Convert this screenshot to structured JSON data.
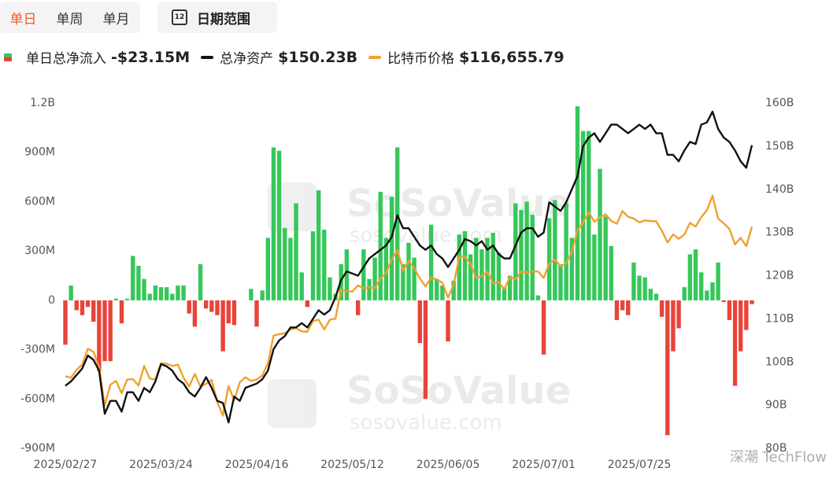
{
  "tabs": [
    "单日",
    "单周",
    "单月"
  ],
  "date_icon": "12",
  "date_button": "日期范围",
  "watermarks": [
    "SoSoValue",
    "sosovalue.com",
    "深潮 TechFlow"
  ],
  "chart_data": {
    "type": "combo",
    "categories": [
      "2025/02/27",
      null,
      null,
      null,
      null,
      null,
      null,
      null,
      null,
      null,
      null,
      null,
      null,
      null,
      null,
      null,
      null,
      "2025/03/24",
      null,
      null,
      null,
      null,
      null,
      null,
      null,
      null,
      null,
      null,
      null,
      null,
      null,
      null,
      null,
      null,
      "2025/04/16",
      null,
      null,
      null,
      null,
      null,
      null,
      null,
      null,
      null,
      null,
      null,
      null,
      null,
      null,
      null,
      null,
      "2025/05/12",
      null,
      null,
      null,
      null,
      null,
      null,
      null,
      null,
      null,
      null,
      null,
      null,
      null,
      null,
      null,
      null,
      "2025/06/05",
      null,
      null,
      null,
      null,
      null,
      null,
      null,
      null,
      null,
      null,
      null,
      null,
      null,
      null,
      null,
      null,
      "2025/07/01",
      null,
      null,
      null,
      null,
      null,
      null,
      null,
      null,
      null,
      null,
      null,
      null,
      null,
      null,
      null,
      null,
      "2025/07/25",
      null,
      null,
      null,
      null,
      null,
      null,
      null,
      null,
      null,
      null,
      null,
      null,
      null,
      null,
      null,
      null,
      null,
      null,
      null,
      null
    ],
    "ylim": [
      -900,
      1200
    ],
    "yticks": [
      {
        "value": -900,
        "label": "-900M"
      },
      {
        "value": -600,
        "label": "-600M"
      },
      {
        "value": -300,
        "label": "-300M"
      },
      0,
      {
        "value": 300,
        "label": "300M"
      },
      {
        "value": 600,
        "label": "600M"
      },
      {
        "value": 900,
        "label": "900M"
      },
      {
        "value": 1200,
        "label": "1.2B"
      }
    ],
    "y2lim": [
      80,
      160
    ],
    "y2ticks": [
      {
        "value": 80,
        "label": "80B"
      },
      {
        "value": 90,
        "label": "90B"
      },
      {
        "value": 100,
        "label": "100B"
      },
      {
        "value": 110,
        "label": "110B"
      },
      {
        "value": 120,
        "label": "120B"
      },
      {
        "value": 130,
        "label": "130B"
      },
      {
        "value": 140,
        "label": "140B"
      },
      {
        "value": 150,
        "label": "150B"
      },
      {
        "value": 160,
        "label": "160B"
      }
    ],
    "y3lim": [
      69300,
      143100
    ],
    "grid": false,
    "series": [
      {
        "name": "单日总净流入",
        "summary": "-$23.15M",
        "type": "bar",
        "axis": "y",
        "color": "#35c75a",
        "negative_color": "#e8443a",
        "values": [
          -270,
          90,
          -60,
          -90,
          -40,
          -130,
          -430,
          -370,
          -370,
          10,
          -140,
          10,
          270,
          210,
          130,
          40,
          90,
          80,
          80,
          40,
          90,
          90,
          -80,
          -160,
          220,
          -50,
          -70,
          -90,
          -310,
          -140,
          -150,
          0,
          0,
          70,
          -160,
          60,
          380,
          930,
          910,
          440,
          380,
          590,
          170,
          -40,
          420,
          670,
          430,
          140,
          40,
          220,
          310,
          0,
          -90,
          310,
          130,
          260,
          660,
          380,
          630,
          930,
          220,
          350,
          260,
          -260,
          -600,
          460,
          130,
          90,
          -250,
          120,
          400,
          420,
          280,
          380,
          310,
          380,
          410,
          290,
          80,
          150,
          590,
          550,
          600,
          520,
          30,
          -330,
          500,
          610,
          220,
          590,
          380,
          1180,
          1030,
          1030,
          400,
          800,
          510,
          330,
          -120,
          -60,
          -90,
          230,
          150,
          140,
          70,
          40,
          -100,
          -820,
          -310,
          -170,
          80,
          280,
          310,
          170,
          60,
          110,
          230,
          -10,
          -120,
          -520,
          -310,
          -180,
          -23.15
        ]
      },
      {
        "name": "总净资产",
        "summary": "$150.23B",
        "type": "line",
        "axis": "y2",
        "color": "#111111",
        "values": [
          94.5,
          95.5,
          97,
          98.5,
          101.5,
          100.5,
          98,
          88,
          91,
          91,
          88.5,
          93,
          93,
          91,
          94,
          93,
          95.5,
          99.5,
          99,
          98,
          96,
          95,
          93,
          92,
          94,
          96.5,
          94,
          91,
          90.5,
          86,
          92,
          91,
          94,
          94.5,
          95,
          96,
          98,
          103,
          105,
          106,
          108,
          108,
          109,
          108,
          110,
          112,
          111,
          112,
          115,
          119,
          121,
          120.5,
          120,
          122,
          124,
          125,
          126,
          127,
          129,
          134,
          131,
          131,
          129,
          127,
          126,
          127,
          125,
          124,
          122,
          124,
          126,
          128.5,
          128,
          127,
          128,
          126,
          127,
          125,
          124,
          124,
          127,
          130,
          131,
          131,
          129,
          130,
          137,
          136,
          135,
          137,
          140,
          143,
          150,
          152,
          153,
          151,
          153,
          155,
          155,
          154,
          153,
          154,
          155,
          154,
          155,
          153,
          153,
          148,
          148,
          146.5,
          149,
          151,
          150.5,
          155,
          155.5,
          158,
          154,
          152,
          151,
          149,
          146.5,
          145,
          150.23
        ]
      },
      {
        "name": "比特币价格",
        "summary": "$116,655.79",
        "type": "line",
        "axis": "y3",
        "color": "#f0a030",
        "values": [
          84700,
          84400,
          86100,
          87200,
          90600,
          89900,
          86700,
          78500,
          82900,
          83700,
          81100,
          84000,
          84100,
          82700,
          86900,
          84200,
          84000,
          87500,
          87400,
          86900,
          87200,
          84400,
          82500,
          85200,
          82500,
          83100,
          83900,
          79200,
          76300,
          82600,
          79600,
          83400,
          84500,
          83700,
          84000,
          84900,
          87500,
          93400,
          93700,
          93900,
          94700,
          95000,
          94300,
          94200,
          96500,
          96800,
          94700,
          96800,
          97000,
          103200,
          102900,
          102800,
          104100,
          103500,
          103700,
          103500,
          105600,
          106800,
          109600,
          111700,
          107300,
          109400,
          107800,
          105600,
          103900,
          105800,
          105400,
          104700,
          101500,
          104300,
          110200,
          110300,
          108700,
          105700,
          106100,
          107000,
          104600,
          104800,
          103300,
          105900,
          105400,
          107100,
          106900,
          107100,
          107100,
          105700,
          108800,
          109600,
          108200,
          108900,
          111300,
          115900,
          117500,
          119800,
          117700,
          118700,
          119300,
          117900,
          117300,
          120000,
          118800,
          118400,
          117600,
          118000,
          117900,
          117800,
          115800,
          113300,
          115000,
          114100,
          115000,
          117500,
          116700,
          118700,
          120200,
          123300,
          118400,
          117400,
          116200,
          112900,
          114300,
          112500,
          116655.79
        ]
      }
    ]
  }
}
